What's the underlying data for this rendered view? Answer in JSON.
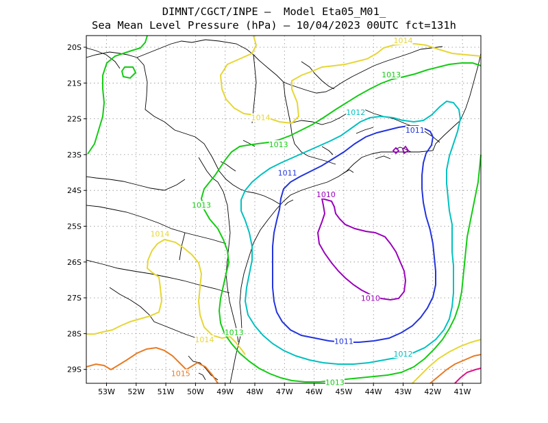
{
  "title": {
    "line1": "DIMNT/CGCT/INPE –  Model Eta05_M01_",
    "line2": "Sea Mean Level Pressure (hPa) – 10/04/2023 00UTC fct=131h"
  },
  "axes": {
    "lat_ticks": [
      "20S",
      "21S",
      "22S",
      "23S",
      "24S",
      "25S",
      "26S",
      "27S",
      "28S",
      "29S"
    ],
    "lon_ticks": [
      "53W",
      "52W",
      "51W",
      "50W",
      "49W",
      "48W",
      "47W",
      "46W",
      "45W",
      "44W",
      "43W",
      "42W",
      "41W"
    ]
  },
  "contours": [
    {
      "level": "1010",
      "color": "#9900bb"
    },
    {
      "level": "1011",
      "color": "#2233dd"
    },
    {
      "level": "1012",
      "color": "#00c0c0"
    },
    {
      "level": "1013",
      "color": "#11cc11"
    },
    {
      "level": "1014",
      "color": "#e6d633"
    },
    {
      "level": "1015",
      "color": "#e87a22"
    },
    {
      "level": "1016",
      "color": "#dd1188"
    }
  ],
  "contour_labels": [
    {
      "text": "1014",
      "color": "#e6d633",
      "lon": -43.0,
      "lat": -19.85
    },
    {
      "text": "1013",
      "color": "#11cc11",
      "lon": -43.4,
      "lat": -20.8
    },
    {
      "text": "1014",
      "color": "#e6d633",
      "lon": -47.8,
      "lat": -22.0
    },
    {
      "text": "1012",
      "color": "#00c0c0",
      "lon": -44.6,
      "lat": -21.85
    },
    {
      "text": "1011",
      "color": "#2233dd",
      "lon": -42.6,
      "lat": -22.35
    },
    {
      "text": "1013",
      "color": "#11cc11",
      "lon": -47.2,
      "lat": -22.75
    },
    {
      "text": "1011",
      "color": "#2233dd",
      "lon": -46.9,
      "lat": -23.55
    },
    {
      "text": "1010",
      "color": "#9900bb",
      "lon": -45.6,
      "lat": -24.15
    },
    {
      "text": "1013",
      "color": "#11cc11",
      "lon": -49.8,
      "lat": -24.45
    },
    {
      "text": "1014",
      "color": "#e6d633",
      "lon": -51.2,
      "lat": -25.25
    },
    {
      "text": "1010",
      "color": "#9900bb",
      "lon": -44.1,
      "lat": -27.05
    },
    {
      "text": "1013",
      "color": "#11cc11",
      "lon": -48.7,
      "lat": -28.0
    },
    {
      "text": "1014",
      "color": "#e6d633",
      "lon": -49.7,
      "lat": -28.2
    },
    {
      "text": "1011",
      "color": "#2233dd",
      "lon": -45.0,
      "lat": -28.25
    },
    {
      "text": "1012",
      "color": "#00c0c0",
      "lon": -43.0,
      "lat": -28.6
    },
    {
      "text": "1015",
      "color": "#e87a22",
      "lon": -50.5,
      "lat": -29.15
    },
    {
      "text": "1013",
      "color": "#11cc11",
      "lon": -45.3,
      "lat": -29.4
    }
  ]
}
